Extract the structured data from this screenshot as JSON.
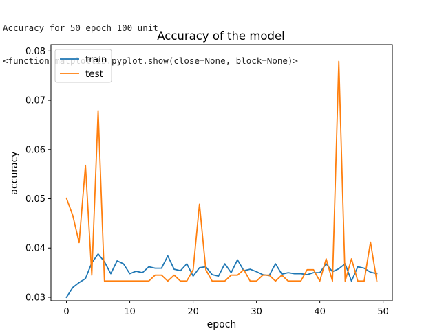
{
  "console": {
    "line1": "Accuracy for 50 epoch 100 unit",
    "line2": "<function matplotlib.pyplot.show(close=None, block=None)>"
  },
  "chart_data": {
    "type": "line",
    "title": "Accuracy of the model",
    "xlabel": "epoch",
    "ylabel": "accuracy",
    "xlim": [
      -2.45,
      51.45
    ],
    "ylim": [
      0.0293,
      0.0813
    ],
    "xticks": [
      0,
      10,
      20,
      30,
      40,
      50
    ],
    "xtick_labels": [
      "0",
      "10",
      "20",
      "30",
      "40",
      "50"
    ],
    "yticks": [
      0.03,
      0.04,
      0.05,
      0.06,
      0.07,
      0.08
    ],
    "ytick_labels": [
      "0.03",
      "0.04",
      "0.05",
      "0.06",
      "0.07",
      "0.08"
    ],
    "grid": false,
    "legend_position": "top-left",
    "x": [
      0,
      1,
      2,
      3,
      4,
      5,
      6,
      7,
      8,
      9,
      10,
      11,
      12,
      13,
      14,
      15,
      16,
      17,
      18,
      19,
      20,
      21,
      22,
      23,
      24,
      25,
      26,
      27,
      28,
      29,
      30,
      31,
      32,
      33,
      34,
      35,
      36,
      37,
      38,
      39,
      40,
      41,
      42,
      43,
      44,
      45,
      46,
      47,
      48,
      49
    ],
    "series": [
      {
        "name": "train",
        "color": "#1f77b4",
        "values": [
          0.03,
          0.032,
          0.033,
          0.0338,
          0.037,
          0.0388,
          0.0372,
          0.0348,
          0.0374,
          0.0368,
          0.0348,
          0.0353,
          0.035,
          0.0362,
          0.0359,
          0.0359,
          0.0384,
          0.0357,
          0.0354,
          0.0368,
          0.0343,
          0.036,
          0.0362,
          0.0346,
          0.0343,
          0.0368,
          0.035,
          0.0376,
          0.0354,
          0.0357,
          0.0352,
          0.0346,
          0.0344,
          0.0368,
          0.0347,
          0.035,
          0.0348,
          0.0348,
          0.0346,
          0.035,
          0.035,
          0.0368,
          0.0352,
          0.0358,
          0.0368,
          0.0333,
          0.0362,
          0.0359,
          0.0351,
          0.0348
        ]
      },
      {
        "name": "test",
        "color": "#ff7f0e",
        "values": [
          0.0501,
          0.0466,
          0.0411,
          0.0568,
          0.0345,
          0.0679,
          0.0333,
          0.0333,
          0.0333,
          0.0333,
          0.0333,
          0.0333,
          0.0333,
          0.0333,
          0.0345,
          0.0345,
          0.0333,
          0.0345,
          0.0333,
          0.0333,
          0.0356,
          0.0489,
          0.0356,
          0.0333,
          0.0333,
          0.0333,
          0.0345,
          0.0345,
          0.0356,
          0.0333,
          0.0333,
          0.0345,
          0.0345,
          0.0333,
          0.0345,
          0.0333,
          0.0333,
          0.0333,
          0.0356,
          0.0356,
          0.0333,
          0.0378,
          0.0333,
          0.0779,
          0.0333,
          0.0378,
          0.0333,
          0.0333,
          0.0412,
          0.0333
        ]
      }
    ]
  }
}
